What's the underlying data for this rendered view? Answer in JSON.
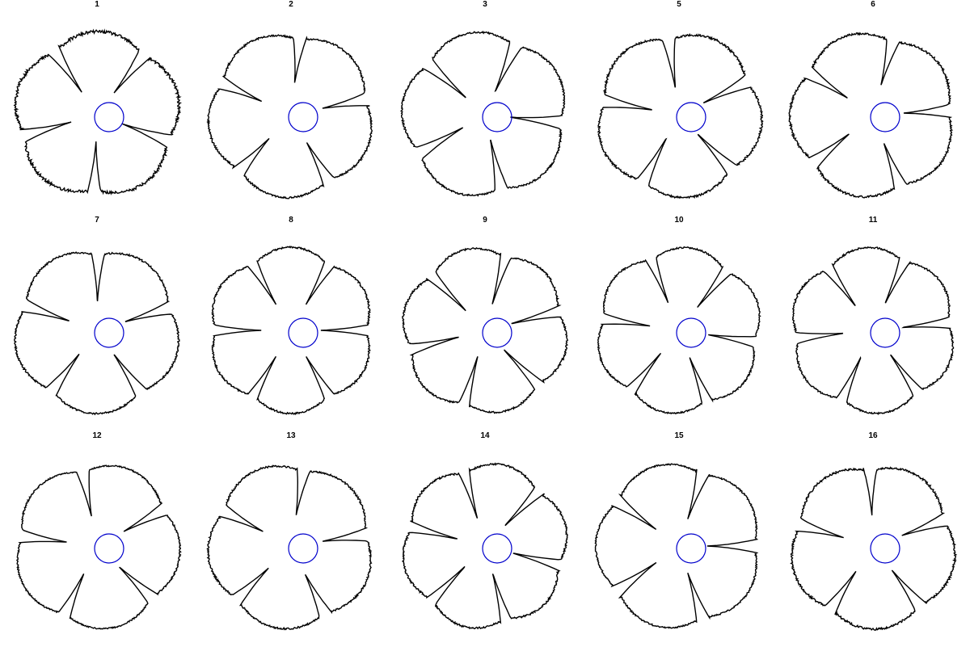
{
  "figure": {
    "outline_color": "#000000",
    "circle_color": "#0000cc",
    "panels": [
      {
        "label": "1",
        "lobes": 5,
        "rot": -0.35,
        "notch": 0.32,
        "jag": 0.1,
        "seed": 11
      },
      {
        "label": "2",
        "lobes": 5,
        "rot": 0.2,
        "notch": 0.38,
        "jag": 0.06,
        "seed": 23
      },
      {
        "label": "3",
        "lobes": 5,
        "rot": -0.1,
        "notch": 0.28,
        "jag": 0.06,
        "seed": 37
      },
      {
        "label": "5",
        "lobes": 5,
        "rot": 0.45,
        "notch": 0.3,
        "jag": 0.07,
        "seed": 41
      },
      {
        "label": "6",
        "lobes": 5,
        "rot": 0.05,
        "notch": 0.35,
        "jag": 0.07,
        "seed": 53
      },
      {
        "label": "7",
        "lobes": 5,
        "rot": 0.3,
        "notch": 0.33,
        "jag": 0.06,
        "seed": 61
      },
      {
        "label": "8",
        "lobes": 6,
        "rot": 0.0,
        "notch": 0.36,
        "jag": 0.06,
        "seed": 71
      },
      {
        "label": "9",
        "lobes": 6,
        "rot": 0.25,
        "notch": 0.3,
        "jag": 0.06,
        "seed": 83
      },
      {
        "label": "10",
        "lobes": 6,
        "rot": -0.15,
        "notch": 0.34,
        "jag": 0.05,
        "seed": 97
      },
      {
        "label": "11",
        "lobes": 6,
        "rot": 0.1,
        "notch": 0.33,
        "jag": 0.06,
        "seed": 101
      },
      {
        "label": "12",
        "lobes": 5,
        "rot": 0.5,
        "notch": 0.35,
        "jag": 0.05,
        "seed": 113
      },
      {
        "label": "13",
        "lobes": 5,
        "rot": 0.15,
        "notch": 0.37,
        "jag": 0.06,
        "seed": 127
      },
      {
        "label": "14",
        "lobes": 6,
        "rot": -0.25,
        "notch": 0.32,
        "jag": 0.06,
        "seed": 139
      },
      {
        "label": "15",
        "lobes": 5,
        "rot": 0.0,
        "notch": 0.34,
        "jag": 0.05,
        "seed": 149
      },
      {
        "label": "16",
        "lobes": 5,
        "rot": 0.35,
        "notch": 0.36,
        "jag": 0.07,
        "seed": 157
      }
    ]
  }
}
